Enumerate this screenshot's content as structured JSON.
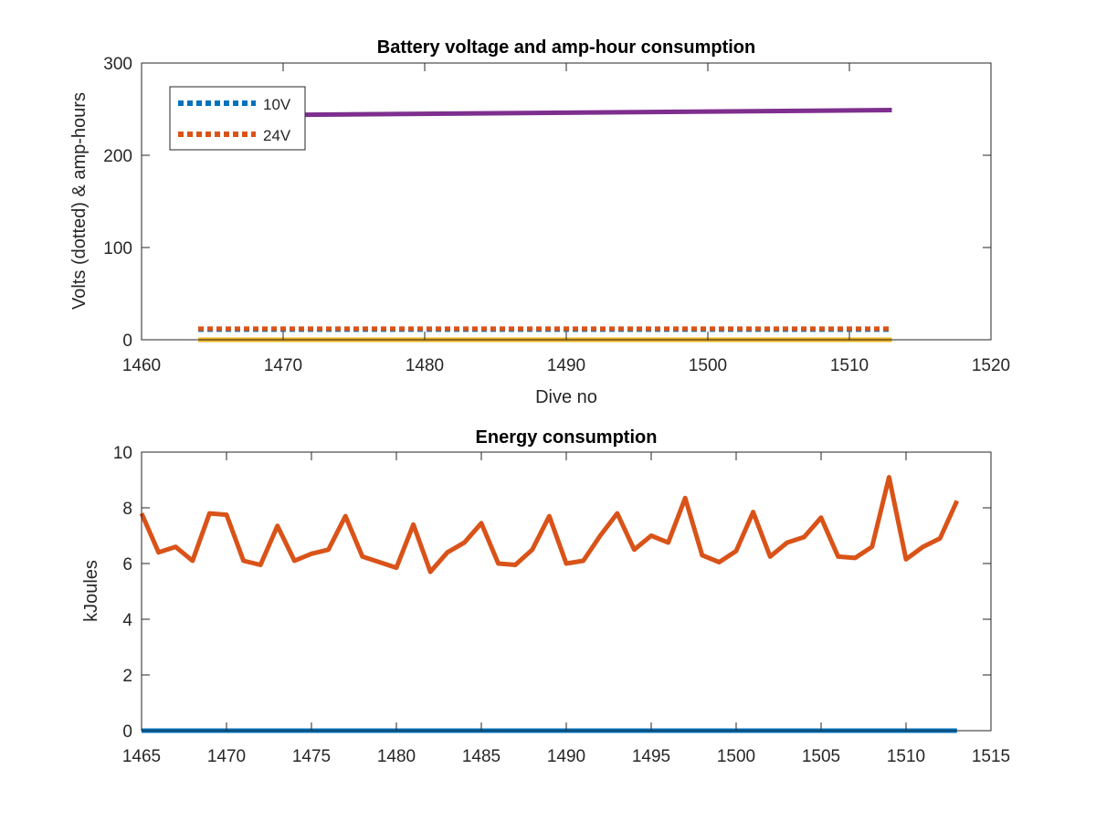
{
  "chart_data": [
    {
      "type": "line",
      "title": "Battery voltage and amp-hour consumption",
      "xlabel": "Dive no",
      "ylabel": "Volts (dotted) & amp-hours",
      "xlim": [
        1460,
        1520
      ],
      "ylim": [
        0,
        300
      ],
      "xticks": [
        1460,
        1470,
        1480,
        1490,
        1500,
        1510,
        1520
      ],
      "yticks": [
        0,
        100,
        200,
        300
      ],
      "grid": false,
      "legend_position": "top-left",
      "series": [
        {
          "name": "10V",
          "color": "#0072BD",
          "style": "dotted",
          "x": [
            1464,
            1513
          ],
          "y": [
            11,
            11
          ]
        },
        {
          "name": "24V",
          "color": "#D95319",
          "style": "dotted",
          "x": [
            1464,
            1513
          ],
          "y": [
            12,
            12
          ]
        },
        {
          "color": "#EDB120",
          "style": "solid",
          "x": [
            1464,
            1513
          ],
          "y": [
            0,
            0
          ]
        },
        {
          "color": "#7E2F8E",
          "style": "solid",
          "x": [
            1464,
            1513
          ],
          "y": [
            243,
            249
          ]
        }
      ]
    },
    {
      "type": "line",
      "title": "Energy consumption",
      "xlabel": "",
      "ylabel": "kJoules",
      "xlim": [
        1465,
        1515
      ],
      "ylim": [
        0,
        10
      ],
      "xticks": [
        1465,
        1470,
        1475,
        1480,
        1485,
        1490,
        1495,
        1500,
        1505,
        1510,
        1515
      ],
      "yticks": [
        0,
        2,
        4,
        6,
        8,
        10
      ],
      "grid": false,
      "series": [
        {
          "color": "#0072BD",
          "style": "solid",
          "x": [
            1465,
            1513
          ],
          "y": [
            0,
            0
          ]
        },
        {
          "color": "#D95319",
          "style": "solid",
          "x": [
            1465,
            1466,
            1467,
            1468,
            1469,
            1470,
            1471,
            1472,
            1473,
            1474,
            1475,
            1476,
            1477,
            1478,
            1479,
            1480,
            1481,
            1482,
            1483,
            1484,
            1485,
            1486,
            1487,
            1488,
            1489,
            1490,
            1491,
            1492,
            1493,
            1494,
            1495,
            1496,
            1497,
            1498,
            1499,
            1500,
            1501,
            1502,
            1503,
            1504,
            1505,
            1506,
            1507,
            1508,
            1509,
            1510,
            1511,
            1512,
            1513
          ],
          "y": [
            7.8,
            6.4,
            6.6,
            6.1,
            7.8,
            7.75,
            6.1,
            5.95,
            7.35,
            6.1,
            6.35,
            6.5,
            7.7,
            6.25,
            6.05,
            5.85,
            7.4,
            5.7,
            6.4,
            6.75,
            7.45,
            6.0,
            5.95,
            6.5,
            7.7,
            6.0,
            6.1,
            7.0,
            7.8,
            6.5,
            7.0,
            6.75,
            8.35,
            6.3,
            6.05,
            6.45,
            7.85,
            6.25,
            6.75,
            6.95,
            7.65,
            6.25,
            6.2,
            6.6,
            9.1,
            6.15,
            6.6,
            6.9,
            8.25
          ]
        }
      ]
    }
  ]
}
